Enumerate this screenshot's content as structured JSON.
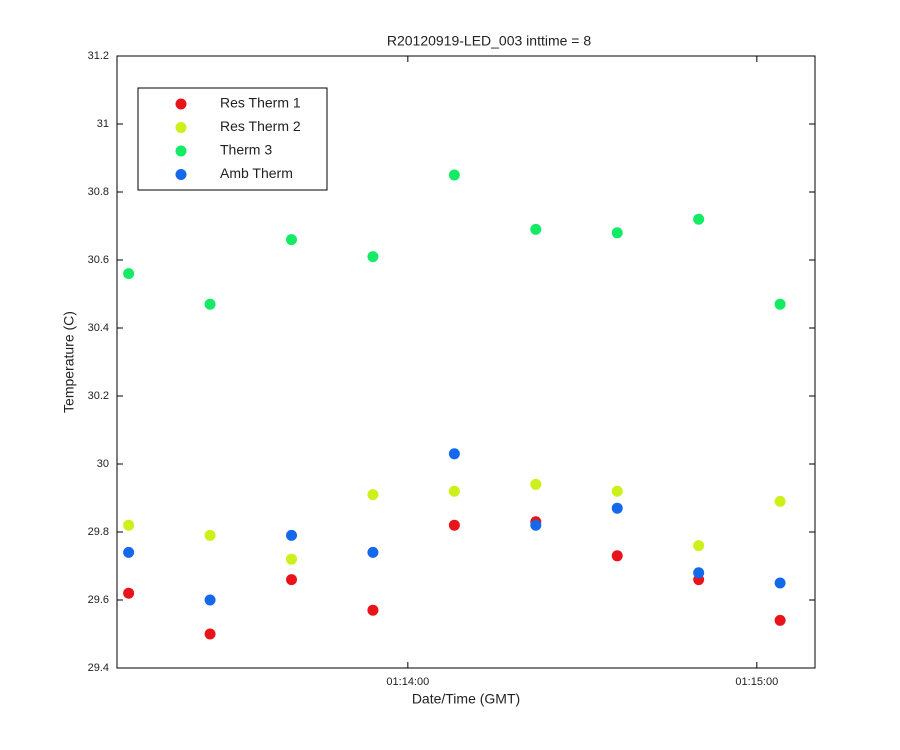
{
  "chart_data": {
    "type": "scatter",
    "title": "R20120919-LED_003 inttime = 8",
    "xlabel": "Date/Time (GMT)",
    "ylabel": "Temperature (C)",
    "x": [
      "01:13:12",
      "01:13:26",
      "01:13:40",
      "01:13:54",
      "01:14:08",
      "01:14:22",
      "01:14:36",
      "01:14:50",
      "01:15:04"
    ],
    "series": [
      {
        "name": "Res Therm 1",
        "color": "#e8141a",
        "values": [
          29.62,
          29.5,
          29.66,
          29.57,
          29.82,
          29.83,
          29.73,
          29.66,
          29.54
        ]
      },
      {
        "name": "Res Therm 2",
        "color": "#ccf01a",
        "values": [
          29.82,
          29.79,
          29.72,
          29.91,
          29.92,
          29.94,
          29.92,
          29.76,
          29.89
        ]
      },
      {
        "name": "Therm 3",
        "color": "#14eb64",
        "values": [
          30.56,
          30.47,
          30.66,
          30.61,
          30.85,
          30.69,
          30.68,
          30.72,
          30.47
        ]
      },
      {
        "name": "Amb Therm",
        "color": "#1469eb",
        "values": [
          29.74,
          29.6,
          29.79,
          29.74,
          30.03,
          29.82,
          29.87,
          29.68,
          29.65
        ]
      }
    ],
    "xlim": [
      "01:13:10",
      "01:15:10"
    ],
    "xticks": [
      "01:14:00",
      "01:15:00"
    ],
    "ylim": [
      29.4,
      31.2
    ],
    "yticks": [
      29.4,
      29.6,
      29.8,
      30,
      30.2,
      30.4,
      30.6,
      30.8,
      31,
      31.2
    ],
    "legend": "upper left"
  }
}
